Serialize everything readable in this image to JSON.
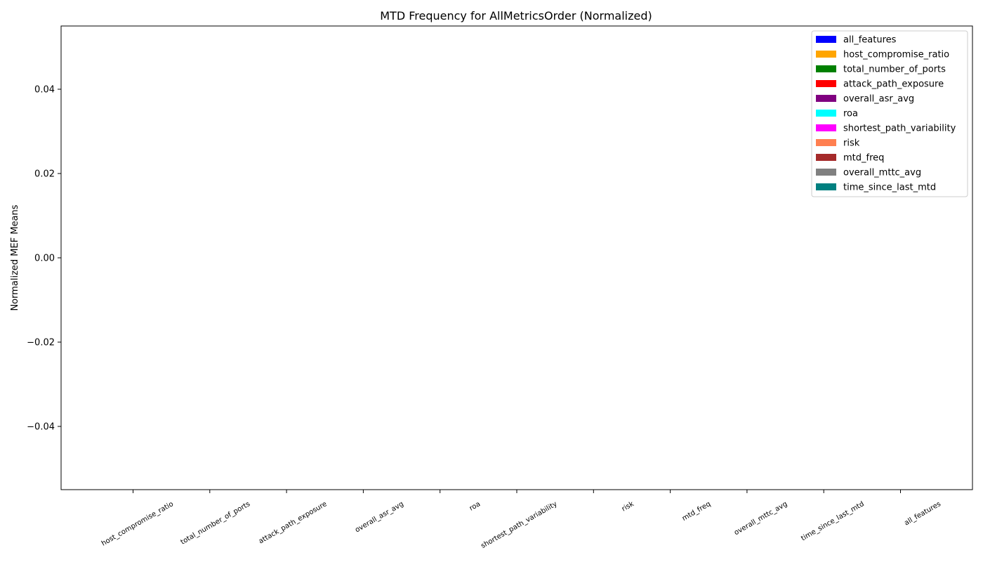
{
  "chart_data": {
    "type": "bar",
    "title": "MTD Frequency for AllMetricsOrder (Normalized)",
    "xlabel": "",
    "ylabel": "Normalized MEF Means",
    "ylim": [
      -0.055,
      0.055
    ],
    "yticks": [
      -0.04,
      -0.02,
      0.0,
      0.02,
      0.04
    ],
    "ytick_labels": [
      "−0.04",
      "−0.02",
      "0.00",
      "0.02",
      "0.04"
    ],
    "categories": [
      "host_compromise_ratio",
      "total_number_of_ports",
      "attack_path_exposure",
      "overall_asr_avg",
      "roa",
      "shortest_path_variability",
      "risk",
      "mtd_freq",
      "overall_mttc_avg",
      "time_since_last_mtd",
      "all_features"
    ],
    "values": [
      null,
      null,
      null,
      null,
      null,
      null,
      null,
      null,
      null,
      null,
      null
    ],
    "legend_position": "top-right",
    "grid": false,
    "legend": [
      {
        "label": "all_features",
        "color": "#0000ff"
      },
      {
        "label": "host_compromise_ratio",
        "color": "#ffa500"
      },
      {
        "label": "total_number_of_ports",
        "color": "#008000"
      },
      {
        "label": "attack_path_exposure",
        "color": "#ff0000"
      },
      {
        "label": "overall_asr_avg",
        "color": "#800080"
      },
      {
        "label": "roa",
        "color": "#00ffff"
      },
      {
        "label": "shortest_path_variability",
        "color": "#ff00ff"
      },
      {
        "label": "risk",
        "color": "#ff7f50"
      },
      {
        "label": "mtd_freq",
        "color": "#a52a2a"
      },
      {
        "label": "overall_mttc_avg",
        "color": "#808080"
      },
      {
        "label": "time_since_last_mtd",
        "color": "#008080"
      }
    ]
  }
}
